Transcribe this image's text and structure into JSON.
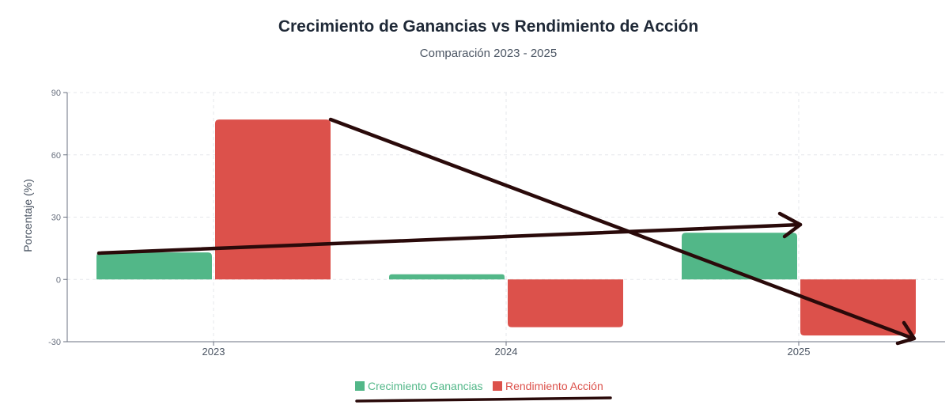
{
  "chart_data": {
    "type": "bar",
    "title": "Crecimiento de Ganancias vs Rendimiento de Acción",
    "subtitle": "Comparación 2023 - 2025",
    "categories": [
      "2023",
      "2024",
      "2025"
    ],
    "series": [
      {
        "name": "Crecimiento Ganancias",
        "values": [
          13,
          2.5,
          22.5
        ],
        "color": "#52b788"
      },
      {
        "name": "Rendimiento Acción",
        "values": [
          77,
          -23,
          -27
        ],
        "color": "#dc514b"
      }
    ],
    "xlabel": "",
    "ylabel": "Porcentaje (%)",
    "ylim": [
      -30,
      90
    ],
    "yticks": [
      -30,
      0,
      30,
      60,
      90
    ],
    "grid": true,
    "legend": "bottom"
  }
}
